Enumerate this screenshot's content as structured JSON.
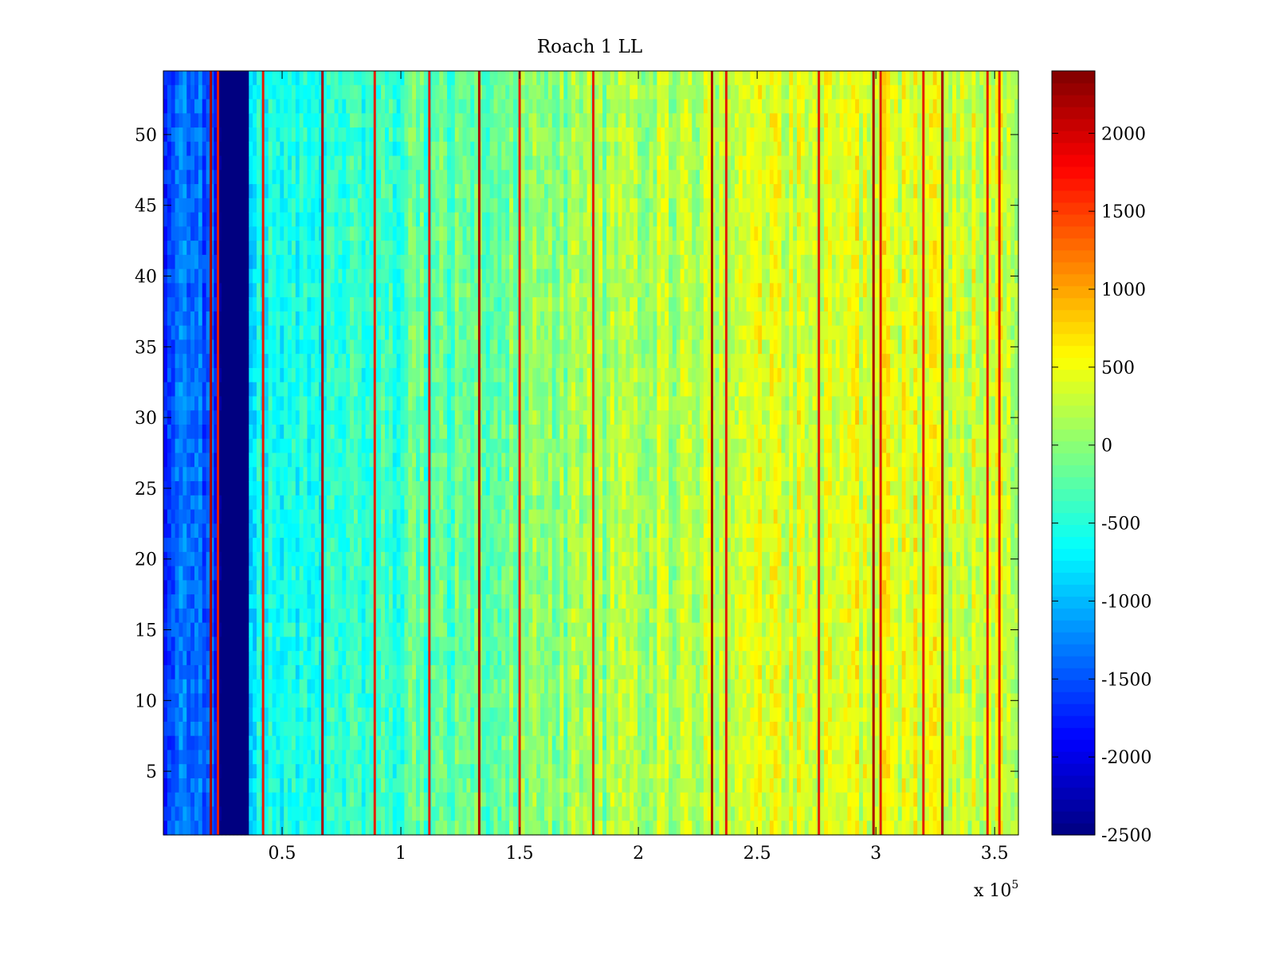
{
  "chart_data": {
    "type": "heatmap",
    "title": "Roach 1 LL",
    "xlabel": "",
    "ylabel": "",
    "x_multiplier_label": "x 10",
    "x_multiplier_exponent": "5",
    "xlim": [
      0,
      360000
    ],
    "ylim": [
      0.5,
      54.5
    ],
    "x_ticks": [
      50000,
      100000,
      150000,
      200000,
      250000,
      300000,
      350000
    ],
    "x_tick_labels": [
      "0.5",
      "1",
      "1.5",
      "2",
      "2.5",
      "3",
      "3.5"
    ],
    "y_ticks": [
      5,
      10,
      15,
      20,
      25,
      30,
      35,
      40,
      45,
      50
    ],
    "y_tick_labels": [
      "5",
      "10",
      "15",
      "20",
      "25",
      "30",
      "35",
      "40",
      "45",
      "50"
    ],
    "colorbar": {
      "colormap": "jet",
      "clim": [
        -2500,
        2400
      ],
      "ticks": [
        -2500,
        -2000,
        -1500,
        -1000,
        -500,
        0,
        500,
        1000,
        1500,
        2000
      ],
      "tick_labels": [
        "-2500",
        "-2000",
        "-1500",
        "-1000",
        "-500",
        "0",
        "500",
        "1000",
        "1500",
        "2000"
      ]
    },
    "rows": 54,
    "value_profile_by_x": [
      {
        "x": 0,
        "value": -1500
      },
      {
        "x": 20000,
        "value": -1400
      },
      {
        "x": 24000,
        "value": -2500
      },
      {
        "x": 36000,
        "value": -2500
      },
      {
        "x": 37000,
        "value": -700
      },
      {
        "x": 60000,
        "value": -500
      },
      {
        "x": 100000,
        "value": -300
      },
      {
        "x": 150000,
        "value": -100
      },
      {
        "x": 200000,
        "value": 150
      },
      {
        "x": 250000,
        "value": 350
      },
      {
        "x": 300000,
        "value": 450
      },
      {
        "x": 360000,
        "value": 350
      }
    ],
    "streak_x": [
      20000,
      23000,
      42000,
      67000,
      89000,
      112000,
      133000,
      150000,
      181000,
      231000,
      237000,
      276000,
      299000,
      302000,
      320000,
      328000,
      347000,
      352000
    ],
    "dark_band_x": [
      24000,
      36000
    ]
  }
}
